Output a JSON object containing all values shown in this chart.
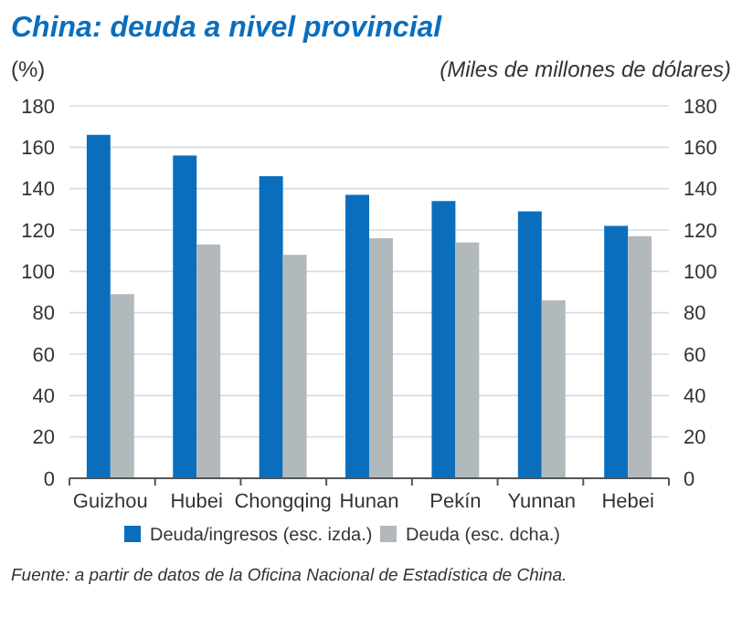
{
  "chart_data": {
    "type": "bar",
    "title": "China: deuda a nivel provincial",
    "ylabel": "(%)",
    "y2label": "(Miles de millones de dólares)",
    "categories": [
      "Guizhou",
      "Hubei",
      "Chongqing",
      "Hunan",
      "Pekín",
      "Yunnan",
      "Hebei"
    ],
    "series": [
      {
        "name": "Deuda/ingresos (esc. izda.)",
        "color": "#0a6ebd",
        "values": [
          166,
          156,
          146,
          137,
          134,
          129,
          122
        ]
      },
      {
        "name": "Deuda (esc. dcha.)",
        "color": "#b1b9bd",
        "values": [
          89,
          113,
          108,
          116,
          114,
          86,
          117
        ],
        "axis": "y2"
      }
    ],
    "ylim": [
      0,
      180
    ],
    "yticks": [
      0,
      20,
      40,
      60,
      80,
      100,
      120,
      140,
      160,
      180
    ],
    "y2lim": [
      0,
      180
    ],
    "y2ticks": [
      0,
      20,
      40,
      60,
      80,
      100,
      120,
      140,
      160,
      180
    ],
    "grid": "y",
    "legend": "bottom",
    "annotations": [
      "Fuente: a partir de datos de la Oficina Nacional de Estadística de China."
    ]
  }
}
